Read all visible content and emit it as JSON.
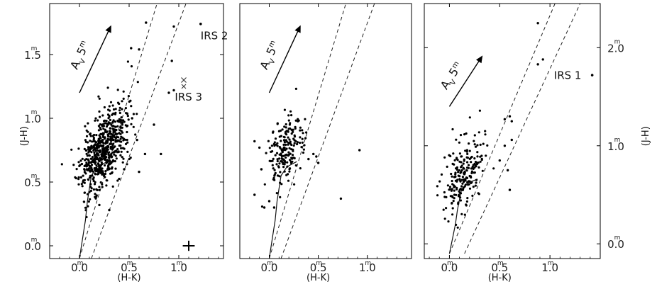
{
  "chart_data": [
    {
      "type": "scatter",
      "xlabel": "(H-K)",
      "ylabel": "(J-H)",
      "xlim": [
        -0.3,
        1.45
      ],
      "ylim": [
        -0.1,
        1.9
      ],
      "xticks": [
        {
          "v": 0.0,
          "t": "0.0"
        },
        {
          "v": 0.5,
          "t": "0.5"
        },
        {
          "v": 1.0,
          "t": "1.0"
        }
      ],
      "yticks": [
        {
          "v": 0.0,
          "t": "0.0"
        },
        {
          "v": 0.5,
          "t": "0.5"
        },
        {
          "v": 1.0,
          "t": "1.0"
        },
        {
          "v": 1.5,
          "t": "1.5"
        }
      ],
      "tick_unit": "m",
      "reddening_vector": {
        "label": "A",
        "sub": "V",
        "value": "5",
        "unit": "m",
        "from": [
          0.0,
          1.2
        ],
        "to": [
          0.32,
          1.73
        ]
      },
      "cloud": {
        "n": 620,
        "mx": 0.24,
        "my": 0.76,
        "sx": 0.12,
        "sy": 0.17,
        "rho": 0.55,
        "seed": 11
      },
      "points": [
        [
          0.52,
          1.55
        ],
        [
          0.6,
          1.54
        ],
        [
          0.67,
          1.75
        ],
        [
          0.95,
          1.72
        ],
        [
          0.93,
          1.45
        ],
        [
          0.95,
          1.22
        ],
        [
          0.9,
          1.2
        ],
        [
          0.75,
          0.95
        ],
        [
          0.82,
          0.72
        ],
        [
          0.66,
          0.72
        ],
        [
          0.58,
          0.83
        ],
        [
          0.53,
          1.0
        ],
        [
          0.6,
          0.58
        ],
        [
          0.45,
          0.6
        ],
        [
          0.2,
          0.32
        ],
        [
          0.3,
          0.28
        ]
      ],
      "crosses": [
        1.05,
        1.25
      ],
      "error_bar": {
        "x": 1.1,
        "y": 0.0,
        "dx": 0.06,
        "dy": 0.04
      },
      "annotations": [
        {
          "text": "IRS 2",
          "x": 1.22,
          "y": 1.62,
          "marker": "dot",
          "mx": 1.22,
          "my": 1.74
        },
        {
          "text": "IRS 3",
          "x": 0.96,
          "y": 1.14,
          "marker": "x",
          "mx": 1.05,
          "my": 1.3
        }
      ],
      "ms_locus": [
        [
          0.0,
          -0.1
        ],
        [
          0.03,
          0.05
        ],
        [
          0.06,
          0.2
        ],
        [
          0.08,
          0.35
        ],
        [
          0.1,
          0.45
        ],
        [
          0.12,
          0.55
        ],
        [
          0.18,
          0.62
        ],
        [
          0.28,
          0.66
        ]
      ],
      "band_lines": [
        [
          [
            0.0,
            -0.1
          ],
          [
            0.82,
            2.0
          ]
        ],
        [
          [
            0.12,
            -0.1
          ],
          [
            1.12,
            2.0
          ]
        ]
      ]
    },
    {
      "type": "scatter",
      "xlabel": "(H-K)",
      "ylabel": "",
      "xlim": [
        -0.3,
        1.45
      ],
      "ylim": [
        -0.1,
        1.9
      ],
      "xticks": [
        {
          "v": 0.0,
          "t": "0.0"
        },
        {
          "v": 0.5,
          "t": "0.5"
        },
        {
          "v": 1.0,
          "t": "1.0"
        }
      ],
      "yticks": [],
      "tick_unit": "m",
      "reddening_vector": {
        "label": "A",
        "sub": "V",
        "value": "5",
        "unit": "m",
        "from": [
          0.0,
          1.2
        ],
        "to": [
          0.32,
          1.73
        ]
      },
      "cloud": {
        "n": 190,
        "mx": 0.16,
        "my": 0.74,
        "sx": 0.09,
        "sy": 0.14,
        "rho": 0.4,
        "seed": 23
      },
      "points": [
        [
          -0.15,
          0.82
        ],
        [
          -0.1,
          0.77
        ],
        [
          -0.08,
          0.6
        ],
        [
          -0.15,
          0.4
        ],
        [
          0.4,
          0.68
        ],
        [
          0.5,
          0.65
        ],
        [
          0.48,
          0.7
        ],
        [
          0.45,
          0.72
        ],
        [
          0.92,
          0.75
        ],
        [
          0.73,
          0.37
        ],
        [
          0.0,
          0.35
        ],
        [
          0.05,
          0.3
        ],
        [
          -0.05,
          0.3
        ]
      ],
      "crosses": [],
      "error_bar": null,
      "annotations": [],
      "ms_locus": [
        [
          0.0,
          -0.1
        ],
        [
          0.03,
          0.05
        ],
        [
          0.06,
          0.2
        ],
        [
          0.08,
          0.35
        ],
        [
          0.1,
          0.45
        ],
        [
          0.12,
          0.55
        ],
        [
          0.18,
          0.62
        ],
        [
          0.28,
          0.66
        ]
      ],
      "band_lines": [
        [
          [
            0.0,
            -0.1
          ],
          [
            0.82,
            2.0
          ]
        ],
        [
          [
            0.12,
            -0.1
          ],
          [
            1.12,
            2.0
          ]
        ]
      ]
    },
    {
      "type": "scatter",
      "xlabel": "(H-K)",
      "ylabel": "(J-H)",
      "xlim": [
        -0.25,
        1.5
      ],
      "ylim": [
        -0.15,
        2.45
      ],
      "xticks": [
        {
          "v": 0.0,
          "t": "0.0"
        },
        {
          "v": 0.5,
          "t": "0.5"
        },
        {
          "v": 1.0,
          "t": "1.0"
        }
      ],
      "yticks": [
        {
          "v": 0.0,
          "t": "0.0"
        },
        {
          "v": 1.0,
          "t": "1.0"
        },
        {
          "v": 2.0,
          "t": "2.0"
        }
      ],
      "tick_unit": "m",
      "reddening_vector": {
        "label": "A",
        "sub": "V",
        "value": "5",
        "unit": "m",
        "from": [
          0.0,
          1.4
        ],
        "to": [
          0.33,
          1.92
        ]
      },
      "cloud": {
        "n": 210,
        "mx": 0.15,
        "my": 0.72,
        "sx": 0.1,
        "sy": 0.2,
        "rho": 0.45,
        "seed": 37
      },
      "points": [
        [
          0.88,
          2.25
        ],
        [
          0.93,
          1.88
        ],
        [
          0.88,
          1.83
        ],
        [
          0.6,
          1.3
        ],
        [
          0.62,
          1.25
        ],
        [
          0.55,
          1.27
        ],
        [
          0.55,
          1.0
        ],
        [
          0.58,
          0.75
        ],
        [
          0.6,
          0.55
        ],
        [
          0.5,
          0.85
        ],
        [
          0.62,
          1.06
        ]
      ],
      "crosses": [],
      "error_bar": null,
      "annotations": [
        {
          "text": "IRS 1",
          "x": 1.04,
          "y": 1.68,
          "marker": "dot",
          "mx": 1.42,
          "my": 1.72
        }
      ],
      "ms_locus": [
        [
          0.0,
          -0.1
        ],
        [
          0.03,
          0.05
        ],
        [
          0.06,
          0.2
        ],
        [
          0.08,
          0.35
        ],
        [
          0.1,
          0.45
        ],
        [
          0.12,
          0.55
        ],
        [
          0.18,
          0.62
        ],
        [
          0.28,
          0.66
        ]
      ],
      "band_lines": [
        [
          [
            0.0,
            -0.1
          ],
          [
            1.05,
            2.45
          ]
        ],
        [
          [
            0.15,
            -0.1
          ],
          [
            1.3,
            2.45
          ]
        ]
      ]
    }
  ]
}
